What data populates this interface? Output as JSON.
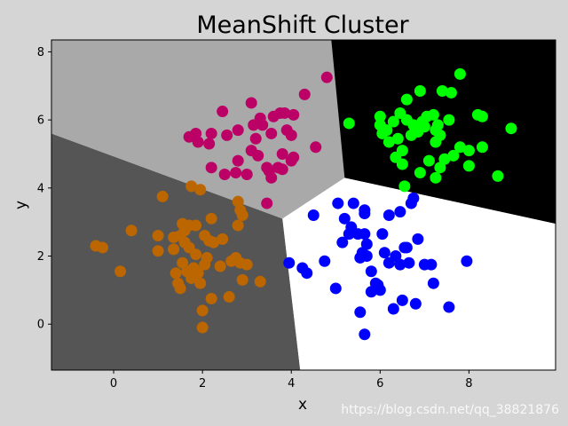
{
  "chart_data": {
    "type": "scatter",
    "title": "MeanShift Cluster",
    "xlabel": "x",
    "ylabel": "y",
    "xlim": [
      -1.4,
      9.95
    ],
    "ylim": [
      -1.35,
      8.35
    ],
    "xticks": [
      0,
      2,
      4,
      6,
      8
    ],
    "yticks": [
      0,
      2,
      4,
      6,
      8
    ],
    "grid": false,
    "legend": "none",
    "regions": [
      {
        "cluster": "orange-cluster",
        "color": "#555555",
        "polygon": [
          [
            -1.4,
            5.6
          ],
          [
            3.8,
            3.1
          ],
          [
            4.2,
            -1.35
          ],
          [
            -1.4,
            -1.35
          ]
        ]
      },
      {
        "cluster": "magenta-cluster",
        "color": "#a9a9a9",
        "polygon": [
          [
            -1.4,
            8.35
          ],
          [
            4.9,
            8.35
          ],
          [
            5.2,
            4.3
          ],
          [
            3.8,
            3.1
          ],
          [
            -1.4,
            5.6
          ]
        ]
      },
      {
        "cluster": "green-cluster",
        "color": "#000000",
        "polygon": [
          [
            4.9,
            8.35
          ],
          [
            9.95,
            8.35
          ],
          [
            9.95,
            2.95
          ],
          [
            5.2,
            4.3
          ]
        ]
      },
      {
        "cluster": "blue-cluster",
        "color": "#ffffff",
        "polygon": [
          [
            5.2,
            4.3
          ],
          [
            9.95,
            2.95
          ],
          [
            9.95,
            -1.35
          ],
          [
            4.2,
            -1.35
          ],
          [
            3.8,
            3.1
          ]
        ]
      }
    ],
    "series": [
      {
        "color": "#bb6600",
        "points": [
          [
            -0.4,
            2.3
          ],
          [
            -0.25,
            2.25
          ],
          [
            0.15,
            1.55
          ],
          [
            0.4,
            2.75
          ],
          [
            1.0,
            2.6
          ],
          [
            1.0,
            2.15
          ],
          [
            1.1,
            3.75
          ],
          [
            1.35,
            2.55
          ],
          [
            1.35,
            2.2
          ],
          [
            1.4,
            1.5
          ],
          [
            1.45,
            1.2
          ],
          [
            1.5,
            1.05
          ],
          [
            1.5,
            2.6
          ],
          [
            1.55,
            2.95
          ],
          [
            1.55,
            1.8
          ],
          [
            1.6,
            2.75
          ],
          [
            1.6,
            2.4
          ],
          [
            1.65,
            1.55
          ],
          [
            1.7,
            2.9
          ],
          [
            1.7,
            2.25
          ],
          [
            1.75,
            4.05
          ],
          [
            1.75,
            1.35
          ],
          [
            1.8,
            1.65
          ],
          [
            1.85,
            2.9
          ],
          [
            1.85,
            2.05
          ],
          [
            1.9,
            1.5
          ],
          [
            1.95,
            1.2
          ],
          [
            1.95,
            3.95
          ],
          [
            2.0,
            0.4
          ],
          [
            2.0,
            -0.1
          ],
          [
            2.05,
            1.75
          ],
          [
            2.05,
            2.6
          ],
          [
            2.1,
            1.95
          ],
          [
            2.15,
            2.45
          ],
          [
            2.2,
            3.1
          ],
          [
            2.2,
            0.75
          ],
          [
            2.25,
            2.4
          ],
          [
            2.4,
            1.7
          ],
          [
            2.45,
            2.5
          ],
          [
            2.6,
            0.8
          ],
          [
            2.65,
            1.85
          ],
          [
            2.75,
            1.95
          ],
          [
            2.8,
            3.6
          ],
          [
            2.8,
            2.9
          ],
          [
            2.85,
            3.35
          ],
          [
            2.85,
            1.8
          ],
          [
            2.9,
            3.2
          ],
          [
            2.9,
            1.3
          ],
          [
            3.0,
            1.75
          ],
          [
            3.3,
            1.25
          ]
        ]
      },
      {
        "color": "#bb0066",
        "points": [
          [
            1.7,
            5.5
          ],
          [
            1.85,
            5.6
          ],
          [
            1.9,
            5.35
          ],
          [
            2.15,
            5.3
          ],
          [
            2.2,
            4.6
          ],
          [
            2.2,
            5.6
          ],
          [
            2.45,
            6.25
          ],
          [
            2.5,
            4.4
          ],
          [
            2.55,
            5.55
          ],
          [
            2.75,
            4.45
          ],
          [
            2.8,
            4.8
          ],
          [
            2.8,
            5.7
          ],
          [
            3.0,
            4.4
          ],
          [
            3.1,
            5.1
          ],
          [
            3.1,
            6.5
          ],
          [
            3.15,
            5.85
          ],
          [
            3.2,
            5.45
          ],
          [
            3.25,
            4.95
          ],
          [
            3.3,
            6.05
          ],
          [
            3.35,
            5.85
          ],
          [
            3.45,
            3.55
          ],
          [
            3.45,
            4.6
          ],
          [
            3.5,
            4.5
          ],
          [
            3.55,
            5.6
          ],
          [
            3.55,
            4.3
          ],
          [
            3.6,
            6.1
          ],
          [
            3.7,
            4.6
          ],
          [
            3.75,
            6.2
          ],
          [
            3.8,
            5.0
          ],
          [
            3.8,
            4.55
          ],
          [
            3.85,
            6.2
          ],
          [
            3.9,
            5.7
          ],
          [
            4.0,
            5.55
          ],
          [
            4.0,
            4.8
          ],
          [
            4.05,
            6.15
          ],
          [
            4.05,
            4.9
          ],
          [
            4.3,
            6.75
          ],
          [
            4.55,
            5.2
          ],
          [
            4.8,
            7.25
          ]
        ]
      },
      {
        "color": "#00ff00",
        "points": [
          [
            5.3,
            5.9
          ],
          [
            6.0,
            6.1
          ],
          [
            6.0,
            5.85
          ],
          [
            6.05,
            5.6
          ],
          [
            6.15,
            5.7
          ],
          [
            6.2,
            5.35
          ],
          [
            6.3,
            5.95
          ],
          [
            6.35,
            4.9
          ],
          [
            6.4,
            5.45
          ],
          [
            6.45,
            6.2
          ],
          [
            6.5,
            5.1
          ],
          [
            6.5,
            4.7
          ],
          [
            6.55,
            4.05
          ],
          [
            6.6,
            6.0
          ],
          [
            6.6,
            6.6
          ],
          [
            6.7,
            5.55
          ],
          [
            6.75,
            5.85
          ],
          [
            6.8,
            5.75
          ],
          [
            6.85,
            5.65
          ],
          [
            6.9,
            4.45
          ],
          [
            6.9,
            6.85
          ],
          [
            6.95,
            5.95
          ],
          [
            7.0,
            5.8
          ],
          [
            7.05,
            6.1
          ],
          [
            7.1,
            4.8
          ],
          [
            7.2,
            6.15
          ],
          [
            7.25,
            5.7
          ],
          [
            7.25,
            5.35
          ],
          [
            7.25,
            4.3
          ],
          [
            7.3,
            5.85
          ],
          [
            7.35,
            5.55
          ],
          [
            7.35,
            4.6
          ],
          [
            7.4,
            6.85
          ],
          [
            7.45,
            4.85
          ],
          [
            7.55,
            6.0
          ],
          [
            7.6,
            6.8
          ],
          [
            7.65,
            4.95
          ],
          [
            7.8,
            5.2
          ],
          [
            7.8,
            7.35
          ],
          [
            8.0,
            5.1
          ],
          [
            8.0,
            4.65
          ],
          [
            8.2,
            6.15
          ],
          [
            8.3,
            6.1
          ],
          [
            8.3,
            5.2
          ],
          [
            8.65,
            4.35
          ],
          [
            8.95,
            5.75
          ]
        ]
      },
      {
        "color": "#0000ff",
        "points": [
          [
            3.95,
            1.8
          ],
          [
            4.25,
            1.65
          ],
          [
            4.35,
            1.5
          ],
          [
            4.5,
            3.2
          ],
          [
            4.75,
            1.85
          ],
          [
            5.0,
            1.05
          ],
          [
            5.05,
            3.55
          ],
          [
            5.15,
            2.4
          ],
          [
            5.2,
            3.1
          ],
          [
            5.3,
            2.65
          ],
          [
            5.35,
            2.85
          ],
          [
            5.4,
            3.55
          ],
          [
            5.5,
            2.65
          ],
          [
            5.55,
            1.95
          ],
          [
            5.55,
            0.35
          ],
          [
            5.6,
            2.1
          ],
          [
            5.65,
            3.35
          ],
          [
            5.65,
            3.25
          ],
          [
            5.65,
            2.65
          ],
          [
            5.65,
            -0.3
          ],
          [
            5.7,
            2.35
          ],
          [
            5.7,
            2.0
          ],
          [
            5.8,
            1.55
          ],
          [
            5.8,
            0.95
          ],
          [
            5.9,
            1.2
          ],
          [
            5.95,
            1.15
          ],
          [
            6.0,
            1.0
          ],
          [
            6.05,
            2.65
          ],
          [
            6.1,
            2.1
          ],
          [
            6.2,
            1.8
          ],
          [
            6.2,
            3.2
          ],
          [
            6.3,
            0.45
          ],
          [
            6.35,
            2.0
          ],
          [
            6.45,
            3.3
          ],
          [
            6.45,
            1.75
          ],
          [
            6.5,
            0.7
          ],
          [
            6.55,
            2.25
          ],
          [
            6.6,
            2.25
          ],
          [
            6.65,
            1.8
          ],
          [
            6.7,
            3.55
          ],
          [
            6.75,
            3.7
          ],
          [
            6.8,
            0.6
          ],
          [
            6.85,
            2.5
          ],
          [
            7.0,
            1.75
          ],
          [
            7.15,
            1.75
          ],
          [
            7.2,
            1.2
          ],
          [
            7.55,
            0.5
          ],
          [
            7.95,
            1.85
          ]
        ]
      }
    ]
  },
  "watermark": "https://blog.csdn.net/qq_38821876"
}
